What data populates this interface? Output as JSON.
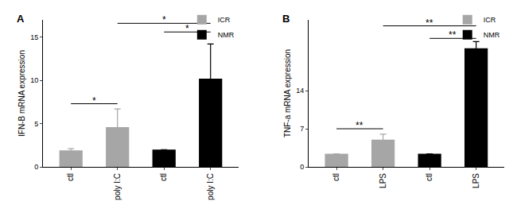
{
  "chart_data": [
    {
      "type": "bar",
      "panel": "A",
      "ylabel": "IFN-B mRNA expression",
      "categories": [
        "ctl",
        "poly I:C",
        "ctl",
        "poly I:C"
      ],
      "series": [
        {
          "name": "ICR",
          "color": "#a6a6a6",
          "values": [
            1.9,
            4.6,
            null,
            null
          ],
          "errors": [
            0.2,
            2.1,
            null,
            null
          ]
        },
        {
          "name": "NMR",
          "color": "#000000",
          "values": [
            null,
            null,
            2.0,
            10.2
          ],
          "errors": [
            null,
            null,
            0,
            4.0
          ]
        }
      ],
      "ylim": [
        0,
        17
      ],
      "yticks": [
        0,
        5,
        10,
        15
      ],
      "grid": false,
      "legend": "top right",
      "annotations": [
        {
          "from": 0,
          "to": 1,
          "y": 7.3,
          "text": "*"
        },
        {
          "from": 2,
          "to": 3,
          "y": 15.6,
          "text": "*"
        },
        {
          "from": 1,
          "to": 3,
          "y": 16.6,
          "text": "*"
        }
      ]
    },
    {
      "type": "bar",
      "panel": "B",
      "ylabel": "TNF-a mRNA expression",
      "categories": [
        "ctl",
        "LPS",
        "ctl",
        "LPS"
      ],
      "series": [
        {
          "name": "ICR",
          "color": "#a6a6a6",
          "values": [
            2.4,
            5.0,
            null,
            null
          ],
          "errors": [
            0,
            1.0,
            null,
            null
          ]
        },
        {
          "name": "NMR",
          "color": "#000000",
          "values": [
            null,
            null,
            2.4,
            21.8
          ],
          "errors": [
            null,
            null,
            0,
            1.2
          ]
        }
      ],
      "ylim": [
        0,
        27
      ],
      "yticks": [
        0,
        7,
        14
      ],
      "grid": false,
      "legend": "top right",
      "annotations": [
        {
          "from": 0,
          "to": 1,
          "y": 7.0,
          "text": "**"
        },
        {
          "from": 2,
          "to": 3,
          "y": 23.6,
          "text": "**"
        },
        {
          "from": 1,
          "to": 3,
          "y": 25.9,
          "text": "**"
        }
      ]
    }
  ]
}
